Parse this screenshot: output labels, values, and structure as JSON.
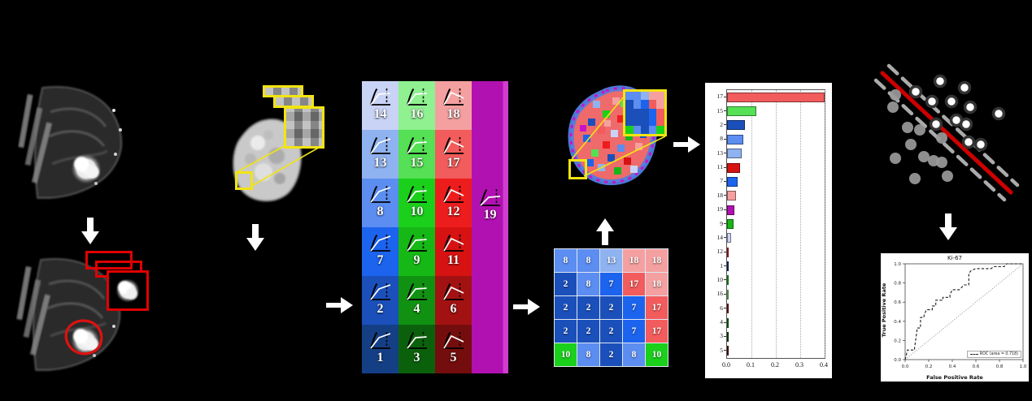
{
  "figure": {
    "background": "#000000"
  },
  "class_colors": {
    "1": "#153f85",
    "2": "#1b50bb",
    "3": "#0b610b",
    "4": "#119111",
    "5": "#740d0d",
    "6": "#a31212",
    "7": "#1c63ee",
    "8": "#5c8df0",
    "9": "#15b815",
    "10": "#1bd01b",
    "11": "#d61212",
    "12": "#ee1d1d",
    "13": "#8fb2f0",
    "14": "#c9d3f6",
    "15": "#55e055",
    "16": "#8ff18f",
    "17": "#f25c5c",
    "18": "#f5a0a0",
    "19": "#b211b2"
  },
  "kinetic_legend": {
    "cells": [
      {
        "id": "14",
        "row": 1,
        "col": 1,
        "color": "#c9d3f6",
        "curve": "plateau"
      },
      {
        "id": "16",
        "row": 1,
        "col": 2,
        "color": "#8ff18f",
        "curve": "plateau"
      },
      {
        "id": "18",
        "row": 1,
        "col": 3,
        "color": "#f5a0a0",
        "curve": "washout"
      },
      {
        "id": "13",
        "row": 2,
        "col": 1,
        "color": "#8fb2f0",
        "curve": "persistent"
      },
      {
        "id": "15",
        "row": 2,
        "col": 2,
        "color": "#55e055",
        "curve": "plateau"
      },
      {
        "id": "17",
        "row": 2,
        "col": 3,
        "color": "#f25c5c",
        "curve": "washout"
      },
      {
        "id": "8",
        "row": 3,
        "col": 1,
        "color": "#5c8df0",
        "curve": "persistent"
      },
      {
        "id": "10",
        "row": 3,
        "col": 2,
        "color": "#1bd01b",
        "curve": "plateau"
      },
      {
        "id": "12",
        "row": 3,
        "col": 3,
        "color": "#ee1d1d",
        "curve": "washout"
      },
      {
        "id": "7",
        "row": 4,
        "col": 1,
        "color": "#1c63ee",
        "curve": "persistent"
      },
      {
        "id": "9",
        "row": 4,
        "col": 2,
        "color": "#15b815",
        "curve": "plateau"
      },
      {
        "id": "11",
        "row": 4,
        "col": 3,
        "color": "#d61212",
        "curve": "washout"
      },
      {
        "id": "2",
        "row": 5,
        "col": 1,
        "color": "#1b50bb",
        "curve": "persistent"
      },
      {
        "id": "4",
        "row": 5,
        "col": 2,
        "color": "#119111",
        "curve": "plateau"
      },
      {
        "id": "6",
        "row": 5,
        "col": 3,
        "color": "#a31212",
        "curve": "washout"
      },
      {
        "id": "1",
        "row": 6,
        "col": 1,
        "color": "#153f85",
        "curve": "persistent"
      },
      {
        "id": "3",
        "row": 6,
        "col": 2,
        "color": "#0b610b",
        "curve": "plateau"
      },
      {
        "id": "5",
        "row": 6,
        "col": 3,
        "color": "#740d0d",
        "curve": "washout"
      }
    ],
    "magenta_cell": {
      "id": "19",
      "color": "#b211b2",
      "curve": "mixed"
    }
  },
  "patch_grid": {
    "rows": [
      [
        "8",
        "8",
        "13",
        "18",
        "18"
      ],
      [
        "2",
        "8",
        "7",
        "17",
        "18"
      ],
      [
        "2",
        "2",
        "2",
        "7",
        "17"
      ],
      [
        "2",
        "2",
        "2",
        "7",
        "17"
      ],
      [
        "10",
        "8",
        "2",
        "8",
        "10"
      ]
    ]
  },
  "chart_data": [
    {
      "id": "feature-importance",
      "type": "bar",
      "orientation": "horizontal",
      "title": "",
      "categories": [
        "17",
        "15",
        "2",
        "8",
        "13",
        "11",
        "7",
        "18",
        "19",
        "9",
        "14",
        "12",
        "1",
        "10",
        "16",
        "6",
        "4",
        "3",
        "5"
      ],
      "values": [
        0.4,
        0.12,
        0.072,
        0.068,
        0.06,
        0.052,
        0.042,
        0.035,
        0.03,
        0.026,
        0.015,
        0.006,
        0.003,
        0.002,
        0.002,
        0.001,
        0.001,
        0.001,
        0.0005
      ],
      "xlim": [
        0,
        0.4
      ],
      "xticks": [
        "0.0",
        "0.1",
        "0.2",
        "0.3",
        "0.4"
      ],
      "grid": "dotted-vertical",
      "bar_colors_from": "class_colors",
      "legend_position": "none"
    },
    {
      "id": "roc",
      "type": "line",
      "title": "Ki-67",
      "xlabel": "False Positive Rate",
      "ylabel": "True Positive Rate",
      "xticks": [
        "0.0",
        "0.2",
        "0.4",
        "0.6",
        "0.8",
        "1.0"
      ],
      "yticks": [
        "0.0",
        "0.2",
        "0.4",
        "0.6",
        "0.8",
        "1.0"
      ],
      "xlim": [
        0,
        1
      ],
      "ylim": [
        0,
        1
      ],
      "diagonal_reference": true,
      "legend": [
        {
          "label": "ROC (area = 0.718)",
          "style": "dashed"
        }
      ],
      "series": [
        {
          "name": "ROC",
          "style": "dashed-step",
          "points": [
            [
              0,
              0
            ],
            [
              0.02,
              0.1
            ],
            [
              0.08,
              0.1
            ],
            [
              0.08,
              0.12
            ],
            [
              0.1,
              0.3
            ],
            [
              0.1,
              0.33
            ],
            [
              0.13,
              0.33
            ],
            [
              0.13,
              0.44
            ],
            [
              0.16,
              0.44
            ],
            [
              0.16,
              0.46
            ],
            [
              0.18,
              0.52
            ],
            [
              0.23,
              0.52
            ],
            [
              0.23,
              0.56
            ],
            [
              0.26,
              0.56
            ],
            [
              0.26,
              0.62
            ],
            [
              0.32,
              0.62
            ],
            [
              0.32,
              0.65
            ],
            [
              0.38,
              0.65
            ],
            [
              0.38,
              0.68
            ],
            [
              0.4,
              0.73
            ],
            [
              0.46,
              0.73
            ],
            [
              0.5,
              0.78
            ],
            [
              0.54,
              0.78
            ],
            [
              0.54,
              0.9
            ],
            [
              0.56,
              0.93
            ],
            [
              0.6,
              0.95
            ],
            [
              0.73,
              0.95
            ],
            [
              0.75,
              0.97
            ],
            [
              0.84,
              0.97
            ],
            [
              0.86,
              1
            ],
            [
              1,
              1
            ]
          ]
        }
      ]
    },
    {
      "id": "svm-scatter",
      "type": "scatter",
      "axes_visible": false,
      "series": [
        {
          "name": "class-a-white",
          "marker": "white-circle-dark-ring",
          "points": [
            [
              98,
              28
            ],
            [
              128,
              36
            ],
            [
              68,
              41
            ],
            [
              88,
              53
            ],
            [
              112,
              53
            ],
            [
              135,
              60
            ],
            [
              170,
              68
            ],
            [
              93,
              81
            ],
            [
              118,
              76
            ],
            [
              130,
              81
            ],
            [
              133,
              103
            ],
            [
              148,
              106
            ]
          ]
        },
        {
          "name": "class-b-gray",
          "marker": "gray-circle",
          "points": [
            [
              43,
              45
            ],
            [
              40,
              60
            ],
            [
              58,
              85
            ],
            [
              73,
              88
            ],
            [
              62,
              106
            ],
            [
              100,
              98
            ],
            [
              43,
              123
            ],
            [
              78,
              121
            ],
            [
              90,
              126
            ],
            [
              100,
              128
            ],
            [
              67,
              148
            ],
            [
              107,
              145
            ]
          ]
        }
      ],
      "decision_boundary": {
        "solid_red": [
          [
            27,
            18
          ],
          [
            185,
            165
          ]
        ],
        "dashed_margins": [
          [
            [
              35,
              9
            ],
            [
              193,
              156
            ]
          ],
          [
            [
              19,
              27
            ],
            [
              177,
              174
            ]
          ]
        ],
        "red": "#cc0000"
      }
    }
  ]
}
